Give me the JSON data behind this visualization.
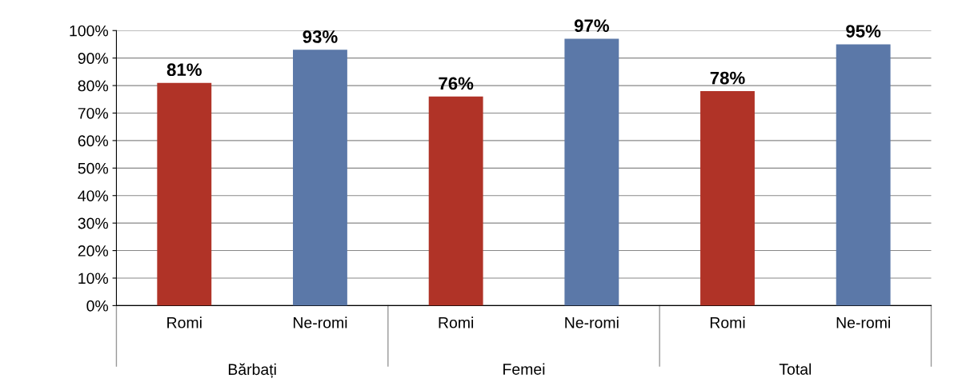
{
  "chart_data": {
    "type": "bar",
    "categories": [
      "Romi",
      "Ne-romi",
      "Romi",
      "Ne-romi",
      "Romi",
      "Ne-romi"
    ],
    "values": [
      81,
      93,
      76,
      97,
      78,
      95
    ],
    "colors": [
      "#b03327",
      "#5b78a8",
      "#b03327",
      "#5b78a8",
      "#b03327",
      "#5b78a8"
    ],
    "value_labels": [
      "81%",
      "93%",
      "76%",
      "97%",
      "78%",
      "95%"
    ],
    "ylim": [
      0,
      100
    ],
    "yticks": [
      {
        "value": 0,
        "label": "0%"
      },
      {
        "value": 10,
        "label": "10%"
      },
      {
        "value": 20,
        "label": "20%"
      },
      {
        "value": 30,
        "label": "30%"
      },
      {
        "value": 40,
        "label": "40%"
      },
      {
        "value": 50,
        "label": "50%"
      },
      {
        "value": 60,
        "label": "60%"
      },
      {
        "value": 70,
        "label": "70%"
      },
      {
        "value": 80,
        "label": "80%"
      },
      {
        "value": 90,
        "label": "90%"
      },
      {
        "value": 100,
        "label": "100%"
      }
    ],
    "annotations": [
      "Bărbați",
      "Femei",
      "Total"
    ],
    "grid": "y"
  }
}
